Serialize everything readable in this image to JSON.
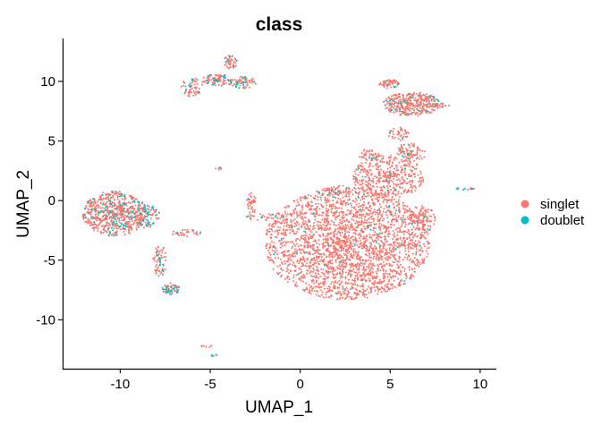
{
  "chart_data": {
    "type": "scatter",
    "title": "class",
    "xlabel": "UMAP_1",
    "ylabel": "UMAP_2",
    "xlim": [
      -13.2,
      10.9
    ],
    "ylim": [
      -14.1,
      13.6
    ],
    "xticks": [
      -10,
      -5,
      0,
      5,
      10
    ],
    "yticks": [
      10,
      5,
      0,
      -5,
      -10
    ],
    "grid": false,
    "legend_position": "right",
    "series": [
      {
        "name": "singlet",
        "color": "#F8766D"
      },
      {
        "name": "doublet",
        "color": "#00BFC4"
      }
    ],
    "clusters": [
      {
        "cx": 2.6,
        "cy": -3.6,
        "rx": 4.6,
        "ry": 4.7,
        "n": 2600,
        "doublet_frac": 0.02
      },
      {
        "cx": 4.9,
        "cy": 2.0,
        "rx": 2.0,
        "ry": 1.8,
        "n": 420,
        "doublet_frac": 0.03
      },
      {
        "cx": 3.8,
        "cy": 3.8,
        "rx": 0.6,
        "ry": 0.5,
        "n": 40,
        "doublet_frac": 0.15
      },
      {
        "cx": 6.1,
        "cy": 4.0,
        "rx": 0.9,
        "ry": 0.8,
        "n": 90,
        "doublet_frac": 0.15
      },
      {
        "cx": 6.8,
        "cy": -1.5,
        "rx": 0.7,
        "ry": 1.2,
        "n": 100,
        "doublet_frac": 0.03
      },
      {
        "cx": 6.2,
        "cy": 8.1,
        "rx": 1.6,
        "ry": 1.0,
        "n": 380,
        "doublet_frac": 0.08
      },
      {
        "cx": 4.9,
        "cy": 9.8,
        "rx": 0.6,
        "ry": 0.4,
        "n": 60,
        "doublet_frac": 0.05
      },
      {
        "cx": 5.5,
        "cy": 5.6,
        "rx": 0.6,
        "ry": 0.6,
        "n": 40,
        "doublet_frac": 0.05
      },
      {
        "cx": 7.7,
        "cy": 8.0,
        "rx": 0.7,
        "ry": 0.2,
        "n": 25,
        "doublet_frac": 0.05
      },
      {
        "cx": 2.0,
        "cy": 0.9,
        "rx": 0.8,
        "ry": 0.4,
        "n": 40,
        "doublet_frac": 0.1
      },
      {
        "cx": -10.3,
        "cy": -1.1,
        "rx": 1.8,
        "ry": 1.9,
        "n": 700,
        "doublet_frac": 0.12
      },
      {
        "cx": -8.5,
        "cy": -1.3,
        "rx": 0.7,
        "ry": 1.0,
        "n": 90,
        "doublet_frac": 0.35
      },
      {
        "cx": -7.8,
        "cy": -5.0,
        "rx": 0.4,
        "ry": 1.4,
        "n": 70,
        "doublet_frac": 0.1
      },
      {
        "cx": -7.2,
        "cy": -7.4,
        "rx": 0.5,
        "ry": 0.5,
        "n": 60,
        "doublet_frac": 0.4
      },
      {
        "cx": -6.4,
        "cy": -2.7,
        "rx": 0.9,
        "ry": 0.3,
        "n": 35,
        "doublet_frac": 0.15
      },
      {
        "cx": -3.9,
        "cy": 11.6,
        "rx": 0.4,
        "ry": 0.6,
        "n": 50,
        "doublet_frac": 0.15
      },
      {
        "cx": -4.6,
        "cy": 10.1,
        "rx": 0.9,
        "ry": 0.5,
        "n": 100,
        "doublet_frac": 0.15
      },
      {
        "cx": -3.2,
        "cy": 9.9,
        "rx": 0.8,
        "ry": 0.5,
        "n": 70,
        "doublet_frac": 0.15
      },
      {
        "cx": -6.0,
        "cy": 9.5,
        "rx": 0.6,
        "ry": 0.8,
        "n": 60,
        "doublet_frac": 0.1
      },
      {
        "cx": -2.7,
        "cy": -0.3,
        "rx": 0.3,
        "ry": 1.0,
        "n": 40,
        "doublet_frac": 0.05
      },
      {
        "cx": -1.8,
        "cy": -1.4,
        "rx": 1.2,
        "ry": 0.3,
        "n": 30,
        "doublet_frac": 0.15
      },
      {
        "cx": -4.5,
        "cy": 2.7,
        "rx": 0.2,
        "ry": 0.1,
        "n": 8,
        "doublet_frac": 0.1
      },
      {
        "cx": -5.2,
        "cy": -12.2,
        "rx": 0.3,
        "ry": 0.1,
        "n": 6,
        "doublet_frac": 0.0
      },
      {
        "cx": -4.8,
        "cy": -13.0,
        "rx": 0.3,
        "ry": 0.1,
        "n": 6,
        "doublet_frac": 0.6
      },
      {
        "cx": 9.2,
        "cy": 1.0,
        "rx": 0.6,
        "ry": 0.1,
        "n": 12,
        "doublet_frac": 0.5
      }
    ]
  }
}
